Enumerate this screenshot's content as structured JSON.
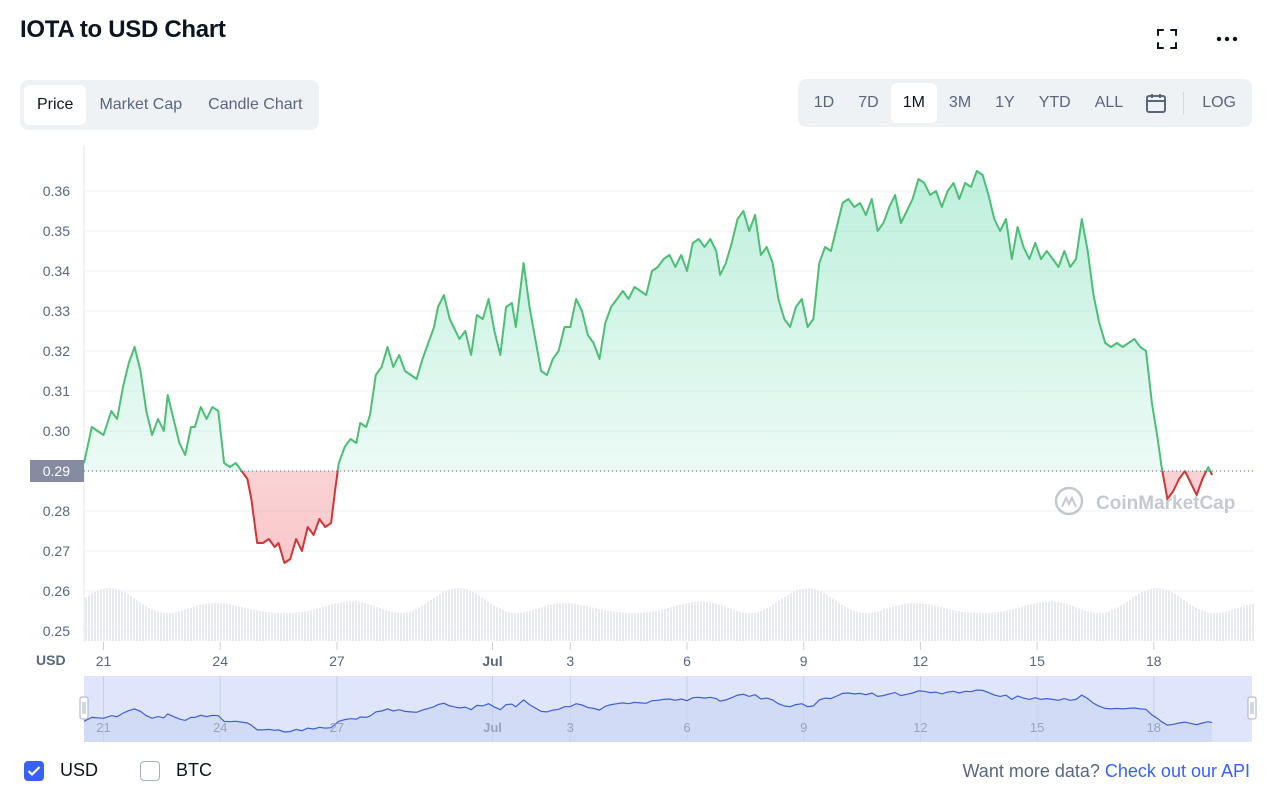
{
  "header": {
    "title": "IOTA to USD Chart",
    "fullscreen_icon": "expand-icon",
    "more_icon": "ellipsis-icon"
  },
  "tabs": [
    {
      "label": "Price",
      "active": true
    },
    {
      "label": "Market Cap",
      "active": false
    },
    {
      "label": "Candle Chart",
      "active": false
    }
  ],
  "ranges": [
    {
      "label": "1D"
    },
    {
      "label": "7D"
    },
    {
      "label": "1M",
      "active": true
    },
    {
      "label": "3M"
    },
    {
      "label": "1Y"
    },
    {
      "label": "YTD"
    },
    {
      "label": "ALL"
    }
  ],
  "log_label": "LOG",
  "calendar_icon": "calendar-icon",
  "colors": {
    "up": "#16c784",
    "up_line": "#4cbf75",
    "down": "#d33535",
    "accent": "#3861fb",
    "grid": "#eff2f5"
  },
  "chart_data": {
    "type": "line",
    "ylabel": "USD",
    "yticks": [
      "0.25",
      "0.26",
      "0.27",
      "0.28",
      "0.29",
      "0.30",
      "0.31",
      "0.32",
      "0.33",
      "0.34",
      "0.35",
      "0.36"
    ],
    "ylim": [
      0.25,
      0.365
    ],
    "baseline": 0.29,
    "baseline_label": "0.29",
    "xlim": [
      0,
      30
    ],
    "xticks": [
      {
        "x": 0,
        "label": "21"
      },
      {
        "x": 3,
        "label": "24"
      },
      {
        "x": 6,
        "label": "27"
      },
      {
        "x": 10,
        "label": "Jul"
      },
      {
        "x": 12,
        "label": "3"
      },
      {
        "x": 15,
        "label": "6"
      },
      {
        "x": 18,
        "label": "9"
      },
      {
        "x": 21,
        "label": "12"
      },
      {
        "x": 24,
        "label": "15"
      },
      {
        "x": 27,
        "label": "18"
      }
    ],
    "series": [
      {
        "values": [
          [
            -0.5,
            0.292
          ],
          [
            -0.3,
            0.301
          ],
          [
            0.0,
            0.299
          ],
          [
            0.2,
            0.305
          ],
          [
            0.35,
            0.303
          ],
          [
            0.5,
            0.311
          ],
          [
            0.65,
            0.317
          ],
          [
            0.8,
            0.321
          ],
          [
            0.95,
            0.315
          ],
          [
            1.1,
            0.305
          ],
          [
            1.25,
            0.299
          ],
          [
            1.4,
            0.303
          ],
          [
            1.55,
            0.3
          ],
          [
            1.65,
            0.309
          ],
          [
            1.8,
            0.303
          ],
          [
            1.95,
            0.297
          ],
          [
            2.1,
            0.294
          ],
          [
            2.25,
            0.301
          ],
          [
            2.35,
            0.301
          ],
          [
            2.5,
            0.306
          ],
          [
            2.65,
            0.303
          ],
          [
            2.8,
            0.306
          ],
          [
            2.95,
            0.305
          ],
          [
            3.1,
            0.292
          ],
          [
            3.25,
            0.291
          ],
          [
            3.4,
            0.292
          ],
          [
            3.55,
            0.29
          ],
          [
            3.7,
            0.288
          ],
          [
            3.8,
            0.283
          ],
          [
            3.95,
            0.272
          ],
          [
            4.1,
            0.272
          ],
          [
            4.25,
            0.273
          ],
          [
            4.4,
            0.271
          ],
          [
            4.5,
            0.272
          ],
          [
            4.65,
            0.267
          ],
          [
            4.8,
            0.268
          ],
          [
            4.95,
            0.273
          ],
          [
            5.1,
            0.27
          ],
          [
            5.25,
            0.276
          ],
          [
            5.4,
            0.274
          ],
          [
            5.55,
            0.278
          ],
          [
            5.7,
            0.276
          ],
          [
            5.85,
            0.277
          ],
          [
            5.95,
            0.285
          ],
          [
            6.05,
            0.292
          ],
          [
            6.2,
            0.296
          ],
          [
            6.35,
            0.298
          ],
          [
            6.5,
            0.297
          ],
          [
            6.6,
            0.302
          ],
          [
            6.75,
            0.301
          ],
          [
            6.85,
            0.304
          ],
          [
            7.0,
            0.314
          ],
          [
            7.15,
            0.316
          ],
          [
            7.3,
            0.321
          ],
          [
            7.45,
            0.316
          ],
          [
            7.6,
            0.319
          ],
          [
            7.75,
            0.315
          ],
          [
            7.9,
            0.314
          ],
          [
            8.05,
            0.313
          ],
          [
            8.2,
            0.318
          ],
          [
            8.35,
            0.322
          ],
          [
            8.5,
            0.326
          ],
          [
            8.6,
            0.331
          ],
          [
            8.75,
            0.334
          ],
          [
            8.9,
            0.328
          ],
          [
            9.0,
            0.326
          ],
          [
            9.15,
            0.323
          ],
          [
            9.3,
            0.325
          ],
          [
            9.45,
            0.319
          ],
          [
            9.6,
            0.329
          ],
          [
            9.75,
            0.328
          ],
          [
            9.9,
            0.333
          ],
          [
            10.05,
            0.325
          ],
          [
            10.2,
            0.319
          ],
          [
            10.35,
            0.331
          ],
          [
            10.5,
            0.332
          ],
          [
            10.6,
            0.326
          ],
          [
            10.8,
            0.342
          ],
          [
            10.95,
            0.331
          ],
          [
            11.1,
            0.323
          ],
          [
            11.25,
            0.315
          ],
          [
            11.4,
            0.314
          ],
          [
            11.55,
            0.318
          ],
          [
            11.7,
            0.32
          ],
          [
            11.85,
            0.326
          ],
          [
            12.0,
            0.326
          ],
          [
            12.15,
            0.333
          ],
          [
            12.3,
            0.33
          ],
          [
            12.45,
            0.324
          ],
          [
            12.6,
            0.322
          ],
          [
            12.75,
            0.318
          ],
          [
            12.9,
            0.327
          ],
          [
            13.05,
            0.331
          ],
          [
            13.2,
            0.333
          ],
          [
            13.35,
            0.335
          ],
          [
            13.5,
            0.333
          ],
          [
            13.65,
            0.336
          ],
          [
            13.8,
            0.335
          ],
          [
            13.95,
            0.334
          ],
          [
            14.1,
            0.34
          ],
          [
            14.25,
            0.341
          ],
          [
            14.4,
            0.343
          ],
          [
            14.55,
            0.344
          ],
          [
            14.7,
            0.341
          ],
          [
            14.85,
            0.344
          ],
          [
            15.0,
            0.34
          ],
          [
            15.15,
            0.347
          ],
          [
            15.3,
            0.348
          ],
          [
            15.45,
            0.346
          ],
          [
            15.6,
            0.348
          ],
          [
            15.75,
            0.345
          ],
          [
            15.85,
            0.339
          ],
          [
            16.0,
            0.342
          ],
          [
            16.15,
            0.347
          ],
          [
            16.3,
            0.353
          ],
          [
            16.45,
            0.355
          ],
          [
            16.6,
            0.35
          ],
          [
            16.75,
            0.354
          ],
          [
            16.9,
            0.344
          ],
          [
            17.05,
            0.346
          ],
          [
            17.2,
            0.342
          ],
          [
            17.35,
            0.333
          ],
          [
            17.5,
            0.328
          ],
          [
            17.65,
            0.326
          ],
          [
            17.8,
            0.331
          ],
          [
            17.95,
            0.333
          ],
          [
            18.1,
            0.326
          ],
          [
            18.25,
            0.328
          ],
          [
            18.4,
            0.342
          ],
          [
            18.55,
            0.346
          ],
          [
            18.7,
            0.345
          ],
          [
            18.85,
            0.351
          ],
          [
            19.0,
            0.357
          ],
          [
            19.15,
            0.358
          ],
          [
            19.3,
            0.356
          ],
          [
            19.45,
            0.357
          ],
          [
            19.6,
            0.354
          ],
          [
            19.75,
            0.358
          ],
          [
            19.9,
            0.35
          ],
          [
            20.05,
            0.352
          ],
          [
            20.2,
            0.356
          ],
          [
            20.35,
            0.359
          ],
          [
            20.5,
            0.352
          ],
          [
            20.65,
            0.355
          ],
          [
            20.8,
            0.358
          ],
          [
            20.95,
            0.363
          ],
          [
            21.1,
            0.362
          ],
          [
            21.25,
            0.359
          ],
          [
            21.4,
            0.36
          ],
          [
            21.55,
            0.356
          ],
          [
            21.7,
            0.36
          ],
          [
            21.85,
            0.362
          ],
          [
            22.0,
            0.358
          ],
          [
            22.15,
            0.362
          ],
          [
            22.3,
            0.361
          ],
          [
            22.45,
            0.365
          ],
          [
            22.6,
            0.364
          ],
          [
            22.75,
            0.359
          ],
          [
            22.9,
            0.353
          ],
          [
            23.05,
            0.35
          ],
          [
            23.2,
            0.353
          ],
          [
            23.35,
            0.343
          ],
          [
            23.5,
            0.351
          ],
          [
            23.65,
            0.346
          ],
          [
            23.8,
            0.343
          ],
          [
            23.95,
            0.347
          ],
          [
            24.1,
            0.343
          ],
          [
            24.25,
            0.345
          ],
          [
            24.4,
            0.343
          ],
          [
            24.55,
            0.341
          ],
          [
            24.7,
            0.345
          ],
          [
            24.85,
            0.341
          ],
          [
            25.0,
            0.343
          ],
          [
            25.15,
            0.353
          ],
          [
            25.3,
            0.345
          ],
          [
            25.45,
            0.334
          ],
          [
            25.6,
            0.327
          ],
          [
            25.75,
            0.322
          ],
          [
            25.9,
            0.321
          ],
          [
            26.05,
            0.322
          ],
          [
            26.2,
            0.321
          ],
          [
            26.35,
            0.322
          ],
          [
            26.5,
            0.323
          ],
          [
            26.65,
            0.321
          ],
          [
            26.8,
            0.32
          ],
          [
            26.95,
            0.307
          ],
          [
            27.1,
            0.298
          ],
          [
            27.2,
            0.291
          ],
          [
            27.35,
            0.283
          ],
          [
            27.5,
            0.285
          ],
          [
            27.65,
            0.288
          ],
          [
            27.8,
            0.29
          ],
          [
            27.95,
            0.287
          ],
          [
            28.1,
            0.284
          ],
          [
            28.25,
            0.288
          ],
          [
            28.4,
            0.291
          ],
          [
            28.5,
            0.289
          ]
        ]
      }
    ],
    "volume_color": "#e8eaf0",
    "navigator": {
      "xticks": [
        "21",
        "24",
        "27",
        "Jul",
        "3",
        "6",
        "9",
        "12",
        "15",
        "18"
      ]
    },
    "watermark": "CoinMarketCap"
  },
  "footer": {
    "usd_label": "USD",
    "usd_checked": true,
    "btc_label": "BTC",
    "btc_checked": false,
    "more_text": "Want more data?",
    "api_link": "Check out our API"
  }
}
